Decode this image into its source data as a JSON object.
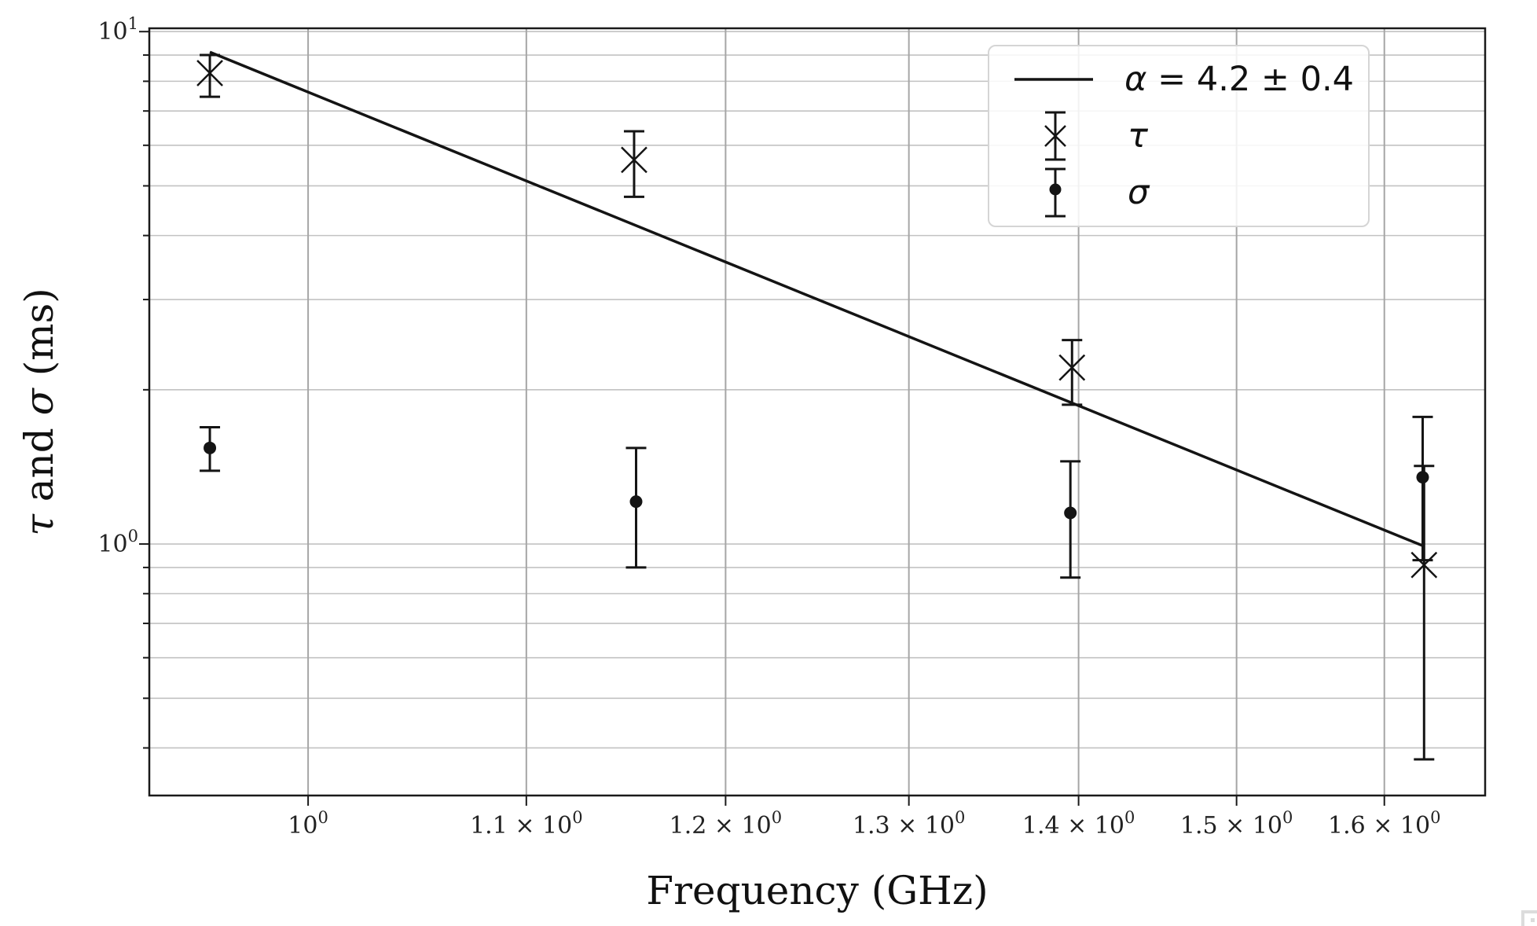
{
  "figure": {
    "xlabel": "Frequency (GHz)",
    "ylabel_parts": [
      {
        "t": "τ",
        "italic": true
      },
      {
        "t": " and ",
        "italic": false
      },
      {
        "t": "σ",
        "italic": true
      },
      {
        "t": " (ms)",
        "italic": false
      }
    ]
  },
  "chart_data": {
    "type": "scatter",
    "x_scale": "log",
    "y_scale": "log",
    "title": "",
    "xlabel": "Frequency (GHz)",
    "ylabel": "τ and σ (ms)",
    "xlim": [
      0.933,
      1.672
    ],
    "ylim": [
      0.323,
      10.15
    ],
    "grid": true,
    "x_ticks": [
      {
        "v": 1.0,
        "base": "10",
        "exp": "0"
      },
      {
        "v": 1.1,
        "base": "1.1 × 10",
        "exp": "0"
      },
      {
        "v": 1.2,
        "base": "1.2 × 10",
        "exp": "0"
      },
      {
        "v": 1.3,
        "base": "1.3 × 10",
        "exp": "0"
      },
      {
        "v": 1.4,
        "base": "1.4 × 10",
        "exp": "0"
      },
      {
        "v": 1.5,
        "base": "1.5 × 10",
        "exp": "0"
      },
      {
        "v": 1.6,
        "base": "1.6 × 10",
        "exp": "0"
      }
    ],
    "y_ticks_major": [
      {
        "v": 10,
        "base": "10",
        "exp": "1"
      },
      {
        "v": 1,
        "base": "10",
        "exp": "0"
      }
    ],
    "y_ticks_minor": [
      9,
      8,
      7,
      6,
      5,
      4,
      3,
      2,
      0.9,
      0.8,
      0.7,
      0.6,
      0.5,
      0.4
    ],
    "series": [
      {
        "name": "τ",
        "marker": "x",
        "x": [
          0.958,
          1.153,
          1.396,
          1.628
        ],
        "y": [
          8.3,
          5.62,
          2.21,
          0.91
        ],
        "y_lo": [
          7.46,
          4.76,
          1.87,
          0.38
        ],
        "y_hi": [
          9.0,
          6.39,
          2.5,
          1.42
        ]
      },
      {
        "name": "σ",
        "marker": "dot",
        "x": [
          0.958,
          1.154,
          1.395,
          1.627
        ],
        "y": [
          1.54,
          1.21,
          1.15,
          1.35
        ],
        "y_lo": [
          1.39,
          0.9,
          0.86,
          0.93
        ],
        "y_hi": [
          1.69,
          1.54,
          1.45,
          1.77
        ]
      }
    ],
    "fit_line": {
      "label": "α = 4.2 ± 0.4",
      "alpha": 4.2,
      "alpha_err": 0.4,
      "x": [
        0.958,
        1.628
      ],
      "y": [
        9.12,
        0.99
      ]
    },
    "legend": {
      "position": "upper right",
      "entries": [
        {
          "type": "line",
          "sym": "α",
          "rest": " = 4.2 ± 0.4"
        },
        {
          "type": "xerr",
          "sym": "τ",
          "rest": ""
        },
        {
          "type": "doterr",
          "sym": "σ",
          "rest": ""
        }
      ]
    }
  },
  "colors": {
    "data": "#141414",
    "grid_v": "#a6a6a6",
    "grid_h": "#c2c2c2",
    "spine": "#1a1a1a",
    "tick_label": "#222222",
    "legend_border": "#d5d5d5"
  }
}
